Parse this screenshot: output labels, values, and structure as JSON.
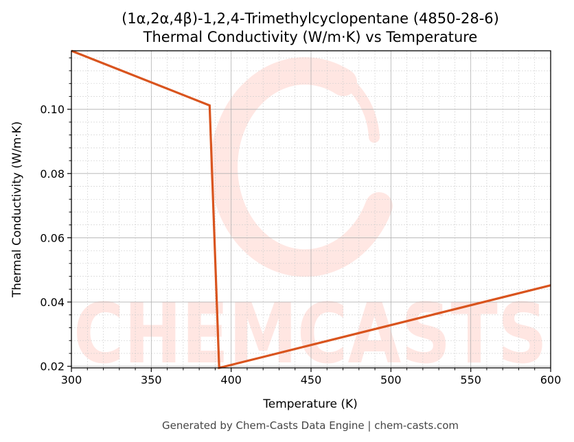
{
  "chart_data": {
    "type": "line",
    "title": "(1α,2α,4β)-1,2,4-Trimethylcyclopentane (4850-28-6)",
    "subtitle": "Thermal Conductivity (W/m·K) vs Temperature",
    "xlabel": "Temperature (K)",
    "ylabel": "Thermal Conductivity (W/m·K)",
    "xlim": [
      300,
      600
    ],
    "ylim": [
      0.0195,
      0.1182
    ],
    "xticks": [
      300,
      350,
      400,
      450,
      500,
      550,
      600
    ],
    "yticks": [
      0.02,
      0.04,
      0.06,
      0.08,
      0.1
    ],
    "ytick_labels": [
      "0.02",
      "0.04",
      "0.06",
      "0.08",
      "0.10"
    ],
    "grid": true,
    "series": [
      {
        "color": "#d9541e",
        "x": [
          300,
          386.5,
          392.5,
          600
        ],
        "y": [
          0.1182,
          0.1012,
          0.0195,
          0.0452
        ]
      }
    ],
    "watermark": "CHEMCASTS",
    "footer": "Generated by Chem-Casts Data Engine | chem-casts.com"
  }
}
